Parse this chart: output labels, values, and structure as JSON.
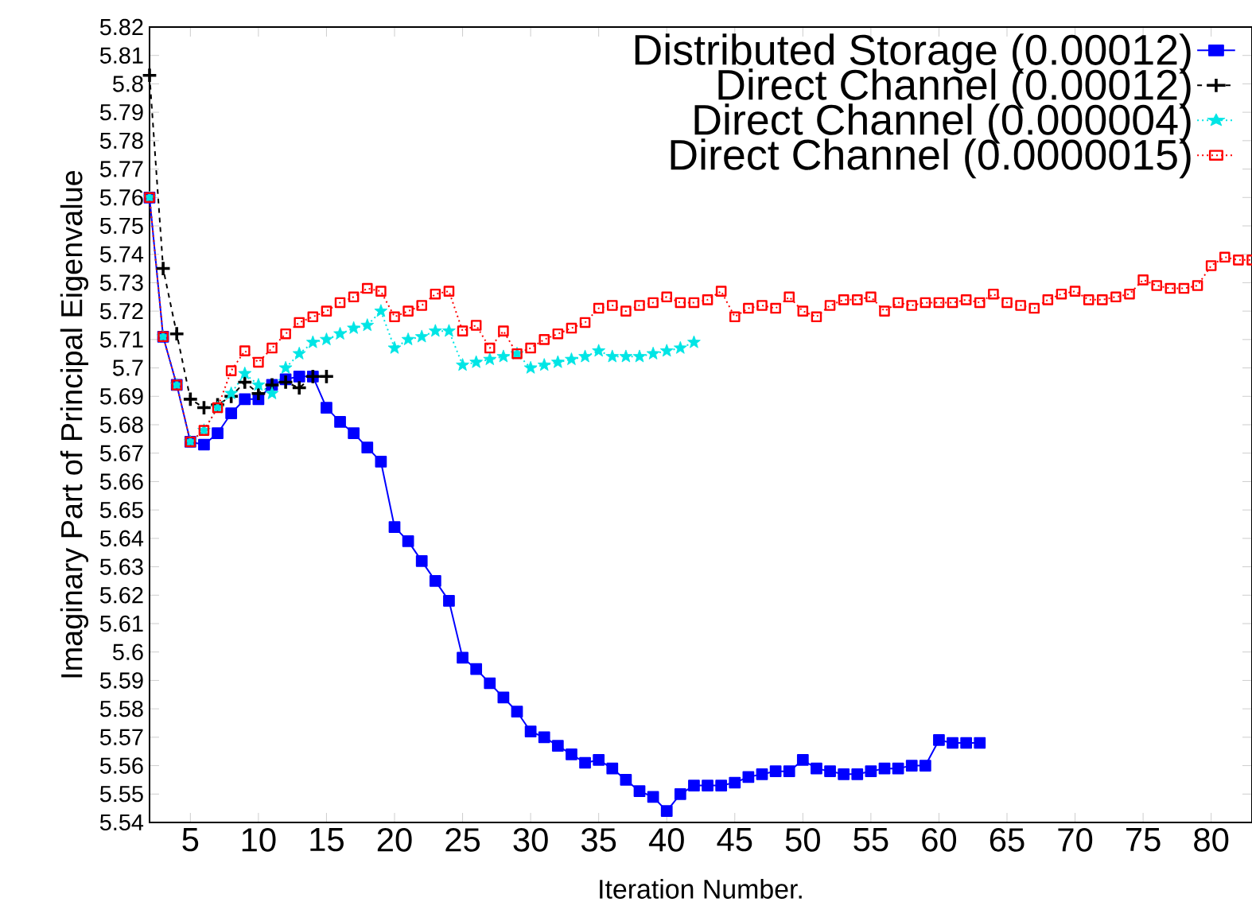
{
  "chart_data": {
    "type": "line",
    "xlabel": "Iteration Number.",
    "ylabel": "Imaginary Part of Principal Eigenvalue",
    "xlim": [
      2,
      83
    ],
    "ylim": [
      5.54,
      5.82
    ],
    "xticks": [
      5,
      10,
      15,
      20,
      25,
      30,
      35,
      40,
      45,
      50,
      55,
      60,
      65,
      70,
      75,
      80
    ],
    "yticks": [
      5.54,
      5.55,
      5.56,
      5.57,
      5.58,
      5.59,
      5.6,
      5.61,
      5.62,
      5.63,
      5.64,
      5.65,
      5.66,
      5.67,
      5.68,
      5.69,
      5.7,
      5.71,
      5.72,
      5.73,
      5.74,
      5.75,
      5.76,
      5.77,
      5.78,
      5.79,
      5.8,
      5.81,
      5.82
    ],
    "grid": false,
    "legend": "top right",
    "series": [
      {
        "name": "Distributed Storage (0.00012)",
        "color": "#0000ff",
        "marker": "square",
        "line_style": "solid",
        "x": [
          2,
          3,
          4,
          5,
          6,
          7,
          8,
          9,
          10,
          11,
          12,
          13,
          14,
          15,
          16,
          17,
          18,
          19,
          20,
          21,
          22,
          23,
          24,
          25,
          26,
          27,
          28,
          29,
          30,
          31,
          32,
          33,
          34,
          35,
          36,
          37,
          38,
          39,
          40,
          41,
          42,
          43,
          44,
          45,
          46,
          47,
          48,
          49,
          50,
          51,
          52,
          53,
          54,
          55,
          56,
          57,
          58,
          59,
          60,
          61,
          62,
          63
        ],
        "values": [
          5.76,
          5.711,
          5.694,
          5.674,
          5.673,
          5.677,
          5.684,
          5.689,
          5.689,
          5.694,
          5.696,
          5.697,
          5.697,
          5.686,
          5.681,
          5.677,
          5.672,
          5.667,
          5.644,
          5.639,
          5.632,
          5.625,
          5.618,
          5.598,
          5.594,
          5.589,
          5.584,
          5.579,
          5.572,
          5.57,
          5.567,
          5.564,
          5.561,
          5.562,
          5.559,
          5.555,
          5.551,
          5.549,
          5.544,
          5.55,
          5.553,
          5.553,
          5.553,
          5.554,
          5.556,
          5.557,
          5.558,
          5.558,
          5.562,
          5.559,
          5.558,
          5.557,
          5.557,
          5.558,
          5.559,
          5.559,
          5.56,
          5.56,
          5.569,
          5.568,
          5.568,
          5.568
        ]
      },
      {
        "name": "Direct Channel (0.00012)",
        "color": "#000000",
        "marker": "cross",
        "line_style": "dashed",
        "x": [
          2,
          3,
          4,
          5,
          6,
          7,
          8,
          9,
          10,
          11,
          12,
          13,
          14,
          15
        ],
        "values": [
          5.803,
          5.735,
          5.712,
          5.689,
          5.686,
          5.687,
          5.69,
          5.695,
          5.691,
          5.694,
          5.695,
          5.693,
          5.697,
          5.697
        ]
      },
      {
        "name": "Direct Channel (0.000004)",
        "color": "#00e5e5",
        "marker": "star",
        "line_style": "dotted",
        "x": [
          2,
          3,
          4,
          5,
          6,
          7,
          8,
          9,
          10,
          11,
          12,
          13,
          14,
          15,
          16,
          17,
          18,
          19,
          20,
          21,
          22,
          23,
          24,
          25,
          26,
          27,
          28,
          29,
          30,
          31,
          32,
          33,
          34,
          35,
          36,
          37,
          38,
          39,
          40,
          41,
          42
        ],
        "values": [
          5.76,
          5.711,
          5.694,
          5.674,
          5.678,
          5.686,
          5.691,
          5.698,
          5.694,
          5.691,
          5.7,
          5.705,
          5.709,
          5.71,
          5.712,
          5.714,
          5.715,
          5.72,
          5.707,
          5.71,
          5.711,
          5.713,
          5.713,
          5.701,
          5.702,
          5.703,
          5.704,
          5.705,
          5.7,
          5.701,
          5.702,
          5.703,
          5.704,
          5.706,
          5.704,
          5.704,
          5.704,
          5.705,
          5.706,
          5.707,
          5.709
        ]
      },
      {
        "name": "Direct Channel (0.0000015)",
        "color": "#ff0000",
        "marker": "square",
        "line_style": "dotted",
        "x": [
          2,
          3,
          4,
          5,
          6,
          7,
          8,
          9,
          10,
          11,
          12,
          13,
          14,
          15,
          16,
          17,
          18,
          19,
          20,
          21,
          22,
          23,
          24,
          25,
          26,
          27,
          28,
          29,
          30,
          31,
          32,
          33,
          34,
          35,
          36,
          37,
          38,
          39,
          40,
          41,
          42,
          43,
          44,
          45,
          46,
          47,
          48,
          49,
          50,
          51,
          52,
          53,
          54,
          55,
          56,
          57,
          58,
          59,
          60,
          61,
          62,
          63,
          64,
          65,
          66,
          67,
          68,
          69,
          70,
          71,
          72,
          73,
          74,
          75,
          76,
          77,
          78,
          79,
          80,
          81,
          82,
          83
        ],
        "values": [
          5.76,
          5.711,
          5.694,
          5.674,
          5.678,
          5.686,
          5.699,
          5.706,
          5.702,
          5.707,
          5.712,
          5.716,
          5.718,
          5.72,
          5.723,
          5.725,
          5.728,
          5.727,
          5.718,
          5.72,
          5.722,
          5.726,
          5.727,
          5.713,
          5.715,
          5.707,
          5.713,
          5.705,
          5.707,
          5.71,
          5.712,
          5.714,
          5.716,
          5.721,
          5.722,
          5.72,
          5.722,
          5.723,
          5.725,
          5.723,
          5.723,
          5.724,
          5.727,
          5.718,
          5.721,
          5.722,
          5.721,
          5.725,
          5.72,
          5.718,
          5.722,
          5.724,
          5.724,
          5.725,
          5.72,
          5.723,
          5.722,
          5.723,
          5.723,
          5.723,
          5.724,
          5.723,
          5.726,
          5.723,
          5.722,
          5.721,
          5.724,
          5.726,
          5.727,
          5.724,
          5.724,
          5.725,
          5.726,
          5.731,
          5.729,
          5.728,
          5.728,
          5.729,
          5.736,
          5.739,
          5.738,
          5.738
        ]
      }
    ]
  }
}
